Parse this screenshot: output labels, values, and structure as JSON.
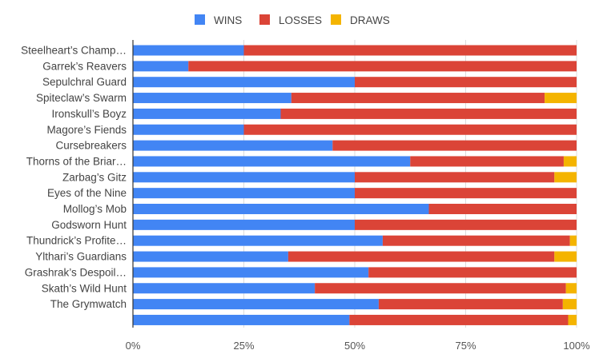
{
  "chart_data": {
    "type": "bar",
    "orientation": "horizontal",
    "stacked": "percent",
    "legend_position": "top",
    "grid": true,
    "categories": [
      "Steelheart’s Champ…",
      "Garrek’s Reavers",
      "Sepulchral Guard",
      "Spiteclaw’s Swarm",
      "Ironskull’s Boyz",
      "Magore’s Fiends",
      "Cursebreakers",
      "Thorns of the Briar…",
      "Zarbag’s Gitz",
      "Eyes of the Nine",
      "Mollog’s Mob",
      "Godsworn Hunt",
      "Thundrick’s Profite…",
      "Ylthari’s Guardians",
      "Grashrak’s Despoil…",
      "Skath’s Wild Hunt",
      "The Grymwatch",
      ""
    ],
    "series": [
      {
        "name": "WINS",
        "color": "#4285f4",
        "values": [
          25,
          12.5,
          50,
          35.7,
          33.3,
          25,
          45,
          62.5,
          50,
          50,
          66.7,
          50,
          56.3,
          35,
          53.1,
          41,
          55.4,
          48.8
        ]
      },
      {
        "name": "LOSSES",
        "color": "#db4437",
        "values": [
          75,
          87.5,
          50,
          57.1,
          66.7,
          75,
          55,
          34.6,
          45,
          50,
          33.3,
          50,
          42.2,
          60,
          46.9,
          56.6,
          41.5,
          49.3
        ]
      },
      {
        "name": "DRAWS",
        "color": "#f4b400",
        "values": [
          0,
          0,
          0,
          7.2,
          0,
          0,
          0,
          2.9,
          5,
          0,
          0,
          0,
          1.5,
          5,
          0,
          2.4,
          3.1,
          1.9
        ]
      }
    ],
    "xlim": [
      0,
      100
    ],
    "xticks": [
      "0%",
      "25%",
      "50%",
      "75%",
      "100%"
    ],
    "title": "",
    "xlabel": "",
    "ylabel": ""
  }
}
